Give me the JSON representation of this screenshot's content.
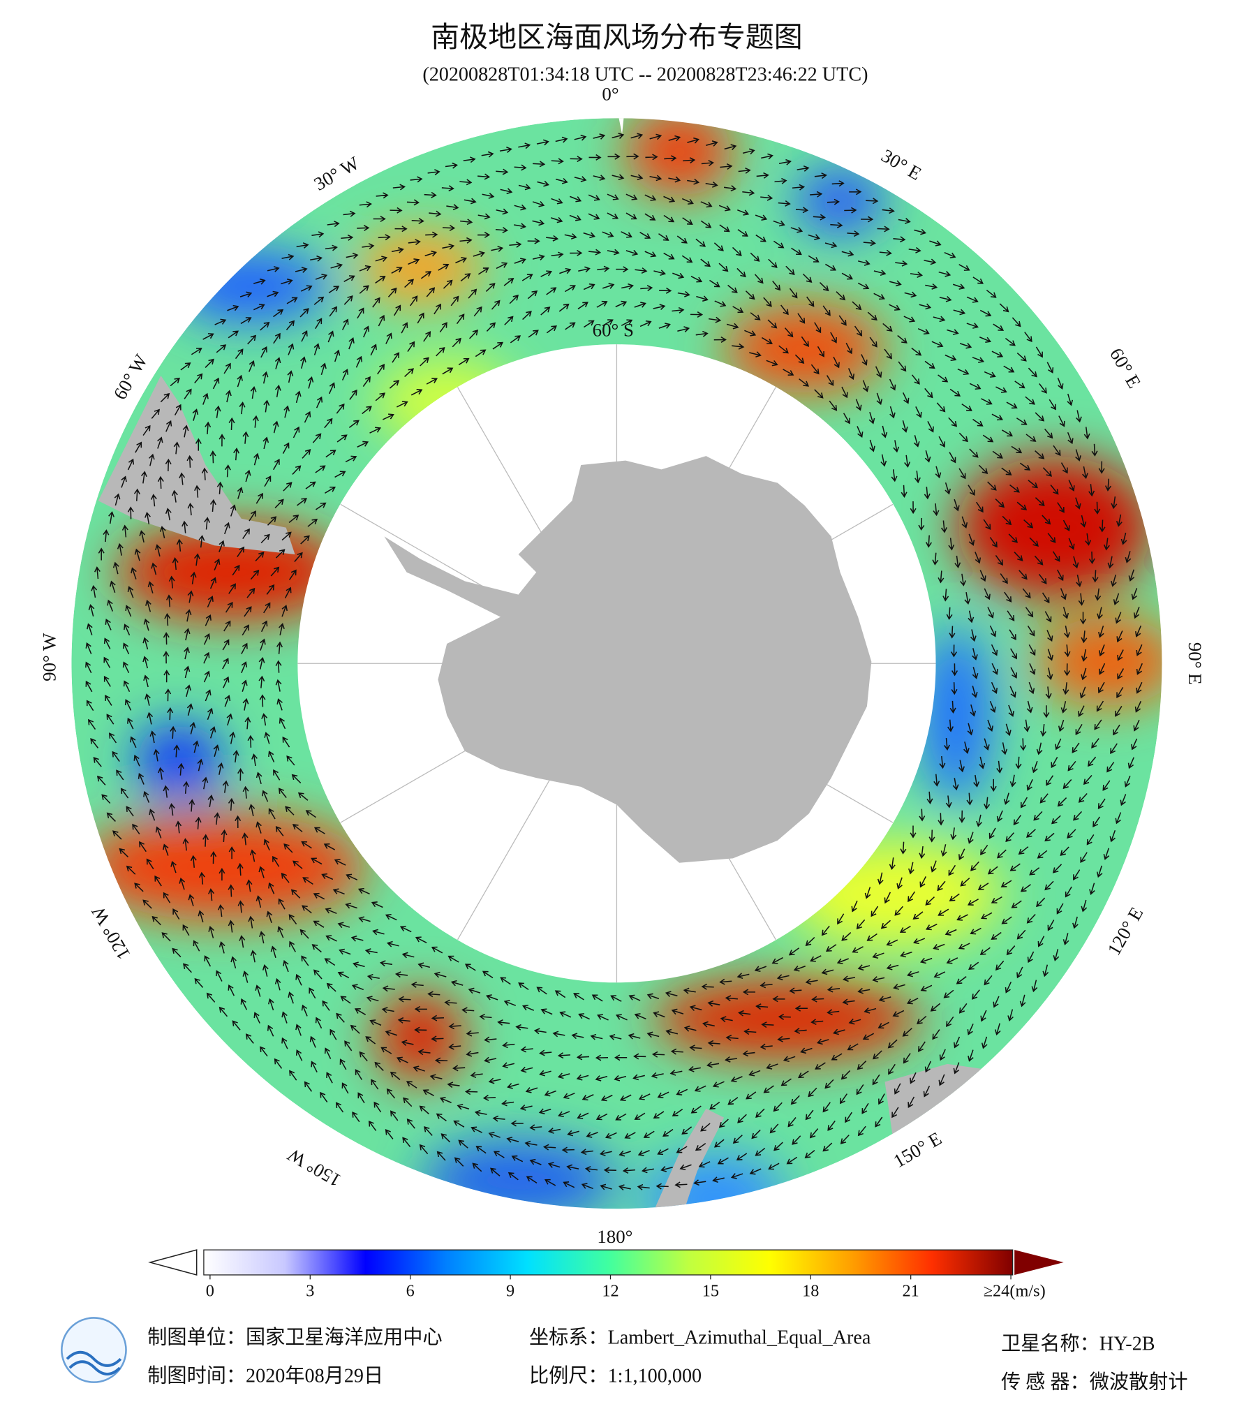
{
  "header": {
    "title": "南极地区海面风场分布专题图",
    "subtitle": "(20200828T01:34:18 UTC -- 20200828T23:46:22 UTC)"
  },
  "map": {
    "latitude_label": "60° S",
    "longitude_labels": [
      "0°",
      "30° W",
      "30° E",
      "60° W",
      "60° E",
      "90° W",
      "90° E",
      "120° W",
      "120° E",
      "150° W",
      "150° E",
      "180°"
    ]
  },
  "colorbar": {
    "lim": [
      0,
      24
    ],
    "ticks": [
      0,
      3,
      6,
      9,
      12,
      15,
      18,
      21,
      {
        "value": 24,
        "label": "≥24(m/s)"
      }
    ],
    "colors": [
      "#ffffff",
      "#c8c8ff",
      "#0000ff",
      "#0080ff",
      "#00e0ff",
      "#40ffa0",
      "#c0ff40",
      "#ffff00",
      "#ffa000",
      "#ff3000",
      "#800000"
    ]
  },
  "footer": {
    "unit": "制图单位：国家卫星海洋应用中心",
    "date": "制图时间：2020年08月29日",
    "projection": "坐标系：Lambert_Azimuthal_Equal_Area",
    "scale": "比例尺：1:1,100,000",
    "satellite": "卫星名称：HY-2B",
    "sensor": "传 感 器：微波散射计"
  }
}
